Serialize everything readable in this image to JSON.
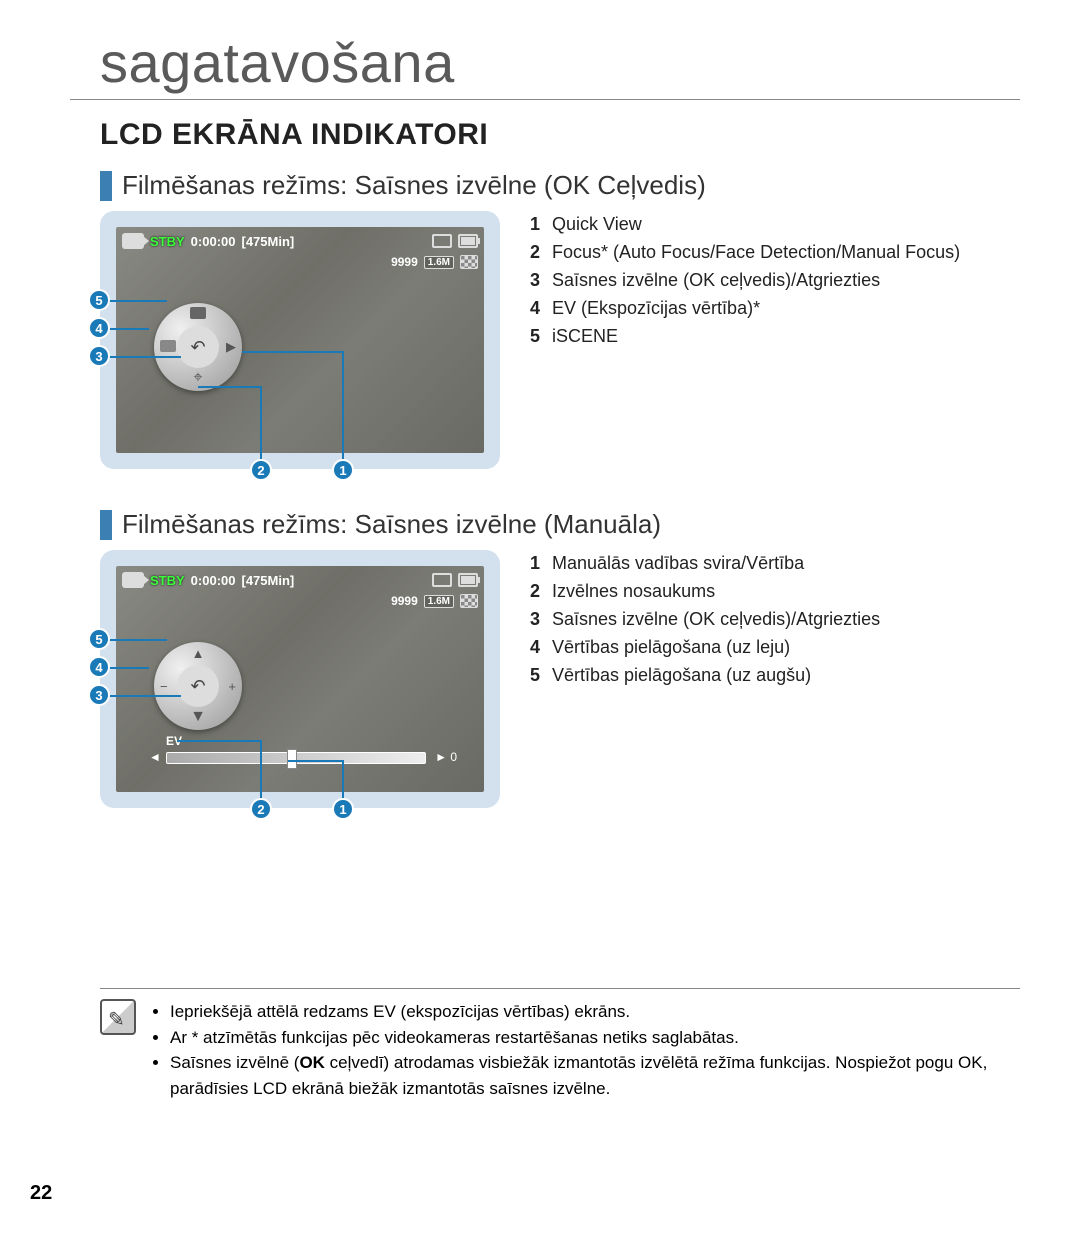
{
  "page": {
    "title": "sagatavošana",
    "section_title": "LCD EKRĀNA INDIKATORI",
    "page_number": "22"
  },
  "section1": {
    "heading": "Filmēšanas režīms: Saīsnes izvēlne (OK Ceļvedis)",
    "lcd": {
      "stby": "STBY",
      "time": "0:00:00",
      "remain": "[475Min]",
      "count": "9999",
      "res": "1.6M"
    },
    "callouts_left": [
      "5",
      "4",
      "3"
    ],
    "callouts_bottom": [
      "2",
      "1"
    ],
    "legend": [
      {
        "n": "1",
        "t": "Quick View"
      },
      {
        "n": "2",
        "t": "Focus* (Auto Focus/Face Detection/Manual Focus)"
      },
      {
        "n": "3",
        "t": "Saīsnes izvēlne (OK ceļvedis)/Atgriezties"
      },
      {
        "n": "4",
        "t": "EV (Ekspozīcijas vērtība)*"
      },
      {
        "n": "5",
        "t": "iSCENE"
      }
    ]
  },
  "section2": {
    "heading": "Filmēšanas režīms: Saīsnes izvēlne (Manuāla)",
    "lcd": {
      "stby": "STBY",
      "time": "0:00:00",
      "remain": "[475Min]",
      "count": "9999",
      "res": "1.6M",
      "ev_label": "EV",
      "ev_value": "0"
    },
    "callouts_left": [
      "5",
      "4",
      "3"
    ],
    "callouts_bottom": [
      "2",
      "1"
    ],
    "legend": [
      {
        "n": "1",
        "t": "Manuālās vadības svira/Vērtība"
      },
      {
        "n": "2",
        "t": "Izvēlnes nosaukums"
      },
      {
        "n": "3",
        "t": "Saīsnes izvēlne (OK ceļvedis)/Atgriezties"
      },
      {
        "n": "4",
        "t": "Vērtības pielāgošana (uz leju)"
      },
      {
        "n": "5",
        "t": "Vērtības pielāgošana (uz augšu)"
      }
    ]
  },
  "notes": {
    "items": [
      "Iepriekšējā attēlā redzams EV (ekspozīcijas vērtības) ekrāns.",
      "Ar * atzīmētās funkcijas pēc videokameras restartēšanas netiks saglabātas.",
      "Saīsnes izvēlnē (OK ceļvedī) atrodamas visbiežāk izmantotās izvēlētā režīma funkcijas. Nospiežot pogu OK, parādīsies LCD ekrānā biežāk izmantotās saīsnes izvēlne."
    ],
    "ok_bold": "OK"
  },
  "colors": {
    "accent": "#1a7ab8",
    "heading_bar": "#3b7fb3",
    "frame_bg": "#d3e1ef",
    "stby": "#3aff3a"
  }
}
